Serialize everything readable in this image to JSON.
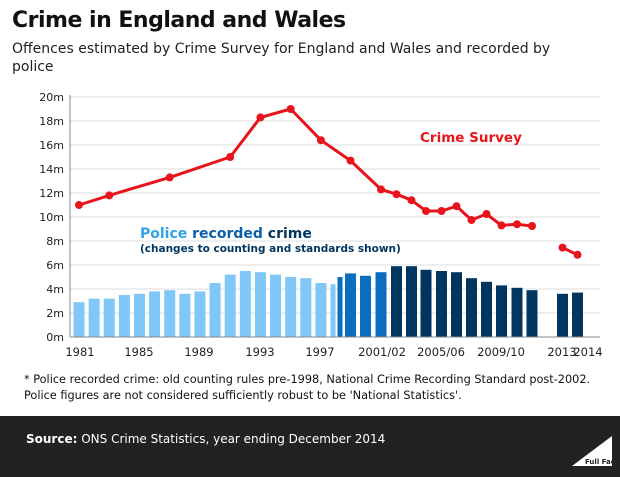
{
  "title": "Crime in England and Wales",
  "subtitle": "Offences estimated by Crime Survey for England and Wales and recorded by police",
  "note_line1": "* Police recorded crime: old counting rules pre-1998, National Crime Recording Standard post-2002.",
  "note_line2": "Police figures are not considered sufficiently robust to be 'National Statistics'.",
  "source_label": "Source:",
  "source_text": " ONS Crime Statistics, year ending December 2014",
  "logo_text": "Full Fact",
  "colors": {
    "survey": "#e8141c",
    "police_old": "#80c6f7",
    "police_mid": "#0b6dbf",
    "police_ncrs": "#00355f",
    "police_word": "#2ea3e6",
    "recorded_word": "#0b5fa8",
    "crime_word": "#00355f"
  },
  "chart_data": {
    "type": "bar+line",
    "ylim": [
      0,
      20
    ],
    "yticks": [
      "0m",
      "2m",
      "4m",
      "6m",
      "8m",
      "10m",
      "12m",
      "14m",
      "16m",
      "18m",
      "20m"
    ],
    "xtick_labels": [
      "1981",
      "1985",
      "1989",
      "1993",
      "1997",
      "2001/02",
      "2005/06",
      "2009/10",
      "2013",
      "2014"
    ],
    "grid": true,
    "legend": {
      "survey_label": "Crime Survey",
      "police_word": "Police",
      "recorded_word": "recorded",
      "crime_word": "crime",
      "police_note": "(changes to counting and standards shown)"
    },
    "police_recorded": [
      {
        "period": "1981",
        "value": 2.9,
        "rules": "old"
      },
      {
        "period": "1982",
        "value": 3.2,
        "rules": "old"
      },
      {
        "period": "1983",
        "value": 3.2,
        "rules": "old"
      },
      {
        "period": "1984",
        "value": 3.5,
        "rules": "old"
      },
      {
        "period": "1985",
        "value": 3.6,
        "rules": "old"
      },
      {
        "period": "1986",
        "value": 3.8,
        "rules": "old"
      },
      {
        "period": "1987",
        "value": 3.9,
        "rules": "old"
      },
      {
        "period": "1988",
        "value": 3.6,
        "rules": "old"
      },
      {
        "period": "1989",
        "value": 3.8,
        "rules": "old"
      },
      {
        "period": "1990",
        "value": 4.5,
        "rules": "old"
      },
      {
        "period": "1991",
        "value": 5.2,
        "rules": "old"
      },
      {
        "period": "1992",
        "value": 5.5,
        "rules": "old"
      },
      {
        "period": "1993",
        "value": 5.4,
        "rules": "old"
      },
      {
        "period": "1994",
        "value": 5.2,
        "rules": "old"
      },
      {
        "period": "1995",
        "value": 5.0,
        "rules": "old"
      },
      {
        "period": "1996",
        "value": 4.9,
        "rules": "old"
      },
      {
        "period": "1997",
        "value": 4.5,
        "rules": "old"
      },
      {
        "period": "1997/98",
        "value": 4.4,
        "rules": "old"
      },
      {
        "period": "1998/99",
        "value": 5.0,
        "rules": "mid"
      },
      {
        "period": "1999/00",
        "value": 5.3,
        "rules": "mid"
      },
      {
        "period": "2000/01",
        "value": 5.1,
        "rules": "mid"
      },
      {
        "period": "2001/02",
        "value": 5.4,
        "rules": "mid"
      },
      {
        "period": "2002/03",
        "value": 5.9,
        "rules": "ncrs"
      },
      {
        "period": "2003/04",
        "value": 5.9,
        "rules": "ncrs"
      },
      {
        "period": "2004/05",
        "value": 5.6,
        "rules": "ncrs"
      },
      {
        "period": "2005/06",
        "value": 5.5,
        "rules": "ncrs"
      },
      {
        "period": "2006/07",
        "value": 5.4,
        "rules": "ncrs"
      },
      {
        "period": "2007/08",
        "value": 4.9,
        "rules": "ncrs"
      },
      {
        "period": "2008/09",
        "value": 4.6,
        "rules": "ncrs"
      },
      {
        "period": "2009/10",
        "value": 4.3,
        "rules": "ncrs"
      },
      {
        "period": "2010/11",
        "value": 4.1,
        "rules": "ncrs"
      },
      {
        "period": "2011/12",
        "value": 3.9,
        "rules": "ncrs"
      },
      {
        "period": "2013",
        "value": 3.6,
        "rules": "ncrs"
      },
      {
        "period": "2014",
        "value": 3.7,
        "rules": "ncrs"
      }
    ],
    "crime_survey": [
      [
        {
          "period": "1981",
          "value": 11.0
        },
        {
          "period": "1983",
          "value": 11.8
        },
        {
          "period": "1987",
          "value": 13.3
        },
        {
          "period": "1991",
          "value": 15.0
        },
        {
          "period": "1993",
          "value": 18.3
        },
        {
          "period": "1995",
          "value": 19.0
        },
        {
          "period": "1997",
          "value": 16.4
        },
        {
          "period": "1999/00",
          "value": 14.7
        },
        {
          "period": "2001/02",
          "value": 12.3
        },
        {
          "period": "2002/03",
          "value": 11.9
        },
        {
          "period": "2003/04",
          "value": 11.4
        },
        {
          "period": "2004/05",
          "value": 10.5
        },
        {
          "period": "2005/06",
          "value": 10.5
        },
        {
          "period": "2006/07",
          "value": 10.9
        },
        {
          "period": "2007/08",
          "value": 9.75
        },
        {
          "period": "2008/09",
          "value": 10.25
        },
        {
          "period": "2009/10",
          "value": 9.3
        },
        {
          "period": "2010/11",
          "value": 9.4
        },
        {
          "period": "2011/12",
          "value": 9.25
        }
      ],
      [
        {
          "period": "2013",
          "value": 7.45
        },
        {
          "period": "2014",
          "value": 6.85
        }
      ]
    ]
  }
}
